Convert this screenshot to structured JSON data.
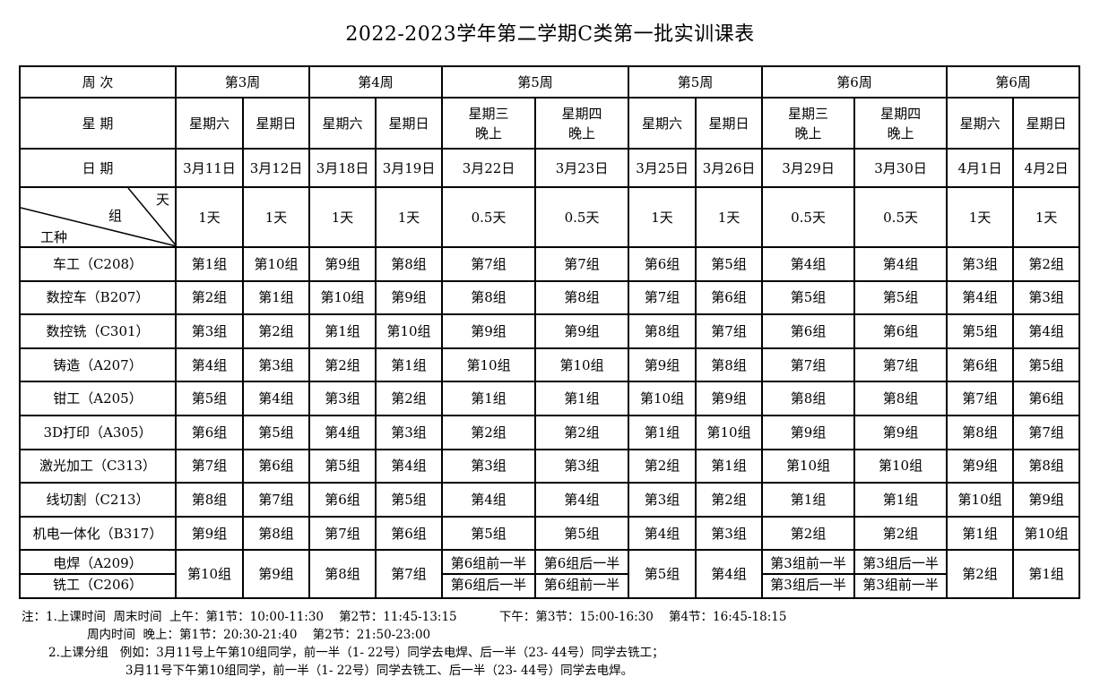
{
  "title": "2022-2023学年第二学期C类第一批实训课表",
  "header": {
    "row1_label": "周  次",
    "row2_label": "星  期",
    "row3_label": "日  期",
    "diag": {
      "day": "天",
      "group": "组",
      "job": "工种"
    },
    "weeks": [
      "第3周",
      "第4周",
      "第5周",
      "第5周",
      "第6周",
      "第6周"
    ],
    "weekdays": [
      "星期六",
      "星期日",
      "星期六",
      "星期日",
      "星期三\n晚上",
      "星期四\n晚上",
      "星期六",
      "星期日",
      "星期三\n晚上",
      "星期四\n晚上",
      "星期六",
      "星期日"
    ],
    "dates": [
      "3月11日",
      "3月12日",
      "3月18日",
      "3月19日",
      "3月22日",
      "3月23日",
      "3月25日",
      "3月26日",
      "3月29日",
      "3月30日",
      "4月1日",
      "4月2日"
    ],
    "durations": [
      "1天",
      "1天",
      "1天",
      "1天",
      "0.5天",
      "0.5天",
      "1天",
      "1天",
      "0.5天",
      "0.5天",
      "1天",
      "1天"
    ]
  },
  "rows": [
    {
      "job": "车工（C208）",
      "cells": [
        "第1组",
        "第10组",
        "第9组",
        "第8组",
        "第7组",
        "第7组",
        "第6组",
        "第5组",
        "第4组",
        "第4组",
        "第3组",
        "第2组"
      ]
    },
    {
      "job": "数控车（B207）",
      "cells": [
        "第2组",
        "第1组",
        "第10组",
        "第9组",
        "第8组",
        "第8组",
        "第7组",
        "第6组",
        "第5组",
        "第5组",
        "第4组",
        "第3组"
      ]
    },
    {
      "job": "数控铣（C301）",
      "cells": [
        "第3组",
        "第2组",
        "第1组",
        "第10组",
        "第9组",
        "第9组",
        "第8组",
        "第7组",
        "第6组",
        "第6组",
        "第5组",
        "第4组"
      ]
    },
    {
      "job": "铸造（A207）",
      "cells": [
        "第4组",
        "第3组",
        "第2组",
        "第1组",
        "第10组",
        "第10组",
        "第9组",
        "第8组",
        "第7组",
        "第7组",
        "第6组",
        "第5组"
      ]
    },
    {
      "job": "钳工（A205）",
      "cells": [
        "第5组",
        "第4组",
        "第3组",
        "第2组",
        "第1组",
        "第1组",
        "第10组",
        "第9组",
        "第8组",
        "第8组",
        "第7组",
        "第6组"
      ]
    },
    {
      "job": "3D打印（A305）",
      "cells": [
        "第6组",
        "第5组",
        "第4组",
        "第3组",
        "第2组",
        "第2组",
        "第1组",
        "第10组",
        "第9组",
        "第9组",
        "第8组",
        "第7组"
      ]
    },
    {
      "job": "激光加工（C313）",
      "cells": [
        "第7组",
        "第6组",
        "第5组",
        "第4组",
        "第3组",
        "第3组",
        "第2组",
        "第1组",
        "第10组",
        "第10组",
        "第9组",
        "第8组"
      ]
    },
    {
      "job": "线切割（C213）",
      "cells": [
        "第8组",
        "第7组",
        "第6组",
        "第5组",
        "第4组",
        "第4组",
        "第3组",
        "第2组",
        "第1组",
        "第1组",
        "第10组",
        "第9组"
      ]
    },
    {
      "job": "机电一体化（B317）",
      "cells": [
        "第9组",
        "第8组",
        "第7组",
        "第6组",
        "第5组",
        "第5组",
        "第4组",
        "第3组",
        "第2组",
        "第2组",
        "第1组",
        "第10组"
      ]
    }
  ],
  "last": {
    "job_top": "电焊（A209）",
    "job_bottom": "铣工（C206）",
    "c1": "第10组",
    "c2": "第9组",
    "c3": "第8组",
    "c4": "第7组",
    "c5_top": "第6组前一半",
    "c5_bottom": "第6组后一半",
    "c6_top": "第6组后一半",
    "c6_bottom": "第6组前一半",
    "c7": "第5组",
    "c8": "第4组",
    "c9_top": "第3组前一半",
    "c9_bottom": "第3组后一半",
    "c10_top": "第3组后一半",
    "c10_bottom": "第3组前一半",
    "c11": "第2组",
    "c12": "第1组"
  },
  "notes": [
    "注：1.上课时间  周末时间  上午：第1节：10:00-11:30    第2节：11:45-13:15           下午：第3节：15:00-16:30    第4节：16:45-18:15",
    "                 周内时间  晚上：第1节：20:30-21:40    第2节：21:50-23:00",
    "       2.上课分组   例如：3月11号上午第10组同学，前一半（1- 22号）同学去电焊、后一半（23- 44号）同学去铣工；",
    "                           3月11号下午第10组同学，前一半（1- 22号）同学去铣工、后一半（23- 44号）同学去电焊。"
  ]
}
